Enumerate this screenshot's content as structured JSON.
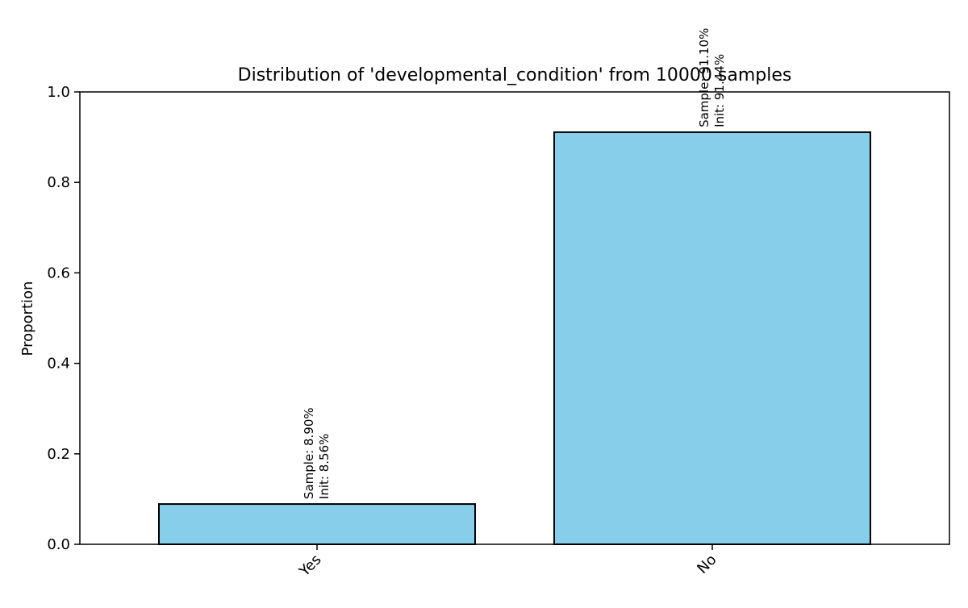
{
  "chart_data": {
    "type": "bar",
    "title": "Distribution of 'developmental_condition' from 10000 samples",
    "xlabel": "",
    "ylabel": "Proportion",
    "categories": [
      "Yes",
      "No"
    ],
    "values": [
      0.089,
      0.911
    ],
    "bar_annotations": [
      [
        "Sample: 8.90%",
        "Init: 8.56%"
      ],
      [
        "Sample: 91.10%",
        "Init: 91.44%"
      ]
    ],
    "ylim": [
      0,
      1.0
    ],
    "yticks": [
      0.0,
      0.2,
      0.4,
      0.6,
      0.8,
      1.0
    ],
    "ytick_labels": [
      "0.0",
      "0.2",
      "0.4",
      "0.6",
      "0.8",
      "1.0"
    ],
    "grid": false,
    "legend": "none",
    "bar_color": "#87CEEB",
    "edge_color": "#000000"
  }
}
